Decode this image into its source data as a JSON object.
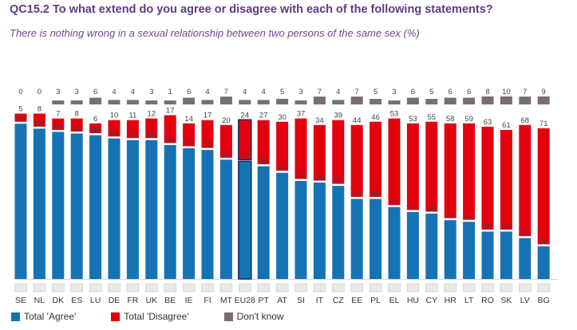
{
  "title": "QC15.2 To what extend do you agree or disagree with each of the following statements?",
  "subtitle": "There is nothing wrong in a sexual relationship between two persons of the same sex (%)",
  "colors": {
    "agree": "#1673b3",
    "disagree": "#e3000f",
    "dontknow": "#7b6e72",
    "eu_outline": "#1a2a5e"
  },
  "legend": {
    "agree": "Total 'Agree'",
    "disagree": "Total 'Disagree'",
    "dontknow": "Don't know"
  },
  "chart_data": {
    "type": "bar",
    "stacked": true,
    "title": "QC15.2 To what extend do you agree or disagree with each of the following statements?",
    "subtitle": "There is nothing wrong in a sexual relationship between two persons of the same sex (%)",
    "categories": [
      "SE",
      "NL",
      "DK",
      "ES",
      "LU",
      "DE",
      "FR",
      "UK",
      "BE",
      "IE",
      "FI",
      "MT",
      "EU28",
      "PT",
      "AT",
      "SI",
      "IT",
      "CZ",
      "EE",
      "PL",
      "EL",
      "HU",
      "CY",
      "HR",
      "LT",
      "RO",
      "SK",
      "LV",
      "BG"
    ],
    "highlight": "EU28",
    "series": [
      {
        "name": "Total 'Agree'",
        "values": [
          95,
          92,
          90,
          89,
          88,
          86,
          85,
          85,
          82,
          80,
          79,
          73,
          72,
          69,
          65,
          60,
          59,
          57,
          49,
          49,
          44,
          41,
          40,
          36,
          35,
          29,
          29,
          25,
          20
        ]
      },
      {
        "name": "Total 'Disagree'",
        "values": [
          5,
          8,
          7,
          8,
          6,
          10,
          11,
          12,
          17,
          14,
          17,
          20,
          24,
          27,
          30,
          37,
          34,
          39,
          44,
          46,
          53,
          53,
          55,
          58,
          59,
          63,
          61,
          68,
          71
        ]
      },
      {
        "name": "Don't know",
        "values": [
          0,
          0,
          3,
          3,
          6,
          4,
          4,
          3,
          1,
          6,
          4,
          7,
          4,
          4,
          5,
          3,
          7,
          4,
          7,
          5,
          3,
          6,
          5,
          6,
          6,
          8,
          10,
          7,
          9
        ]
      }
    ],
    "ylim": [
      0,
      100
    ],
    "legend_position": "bottom-left"
  }
}
